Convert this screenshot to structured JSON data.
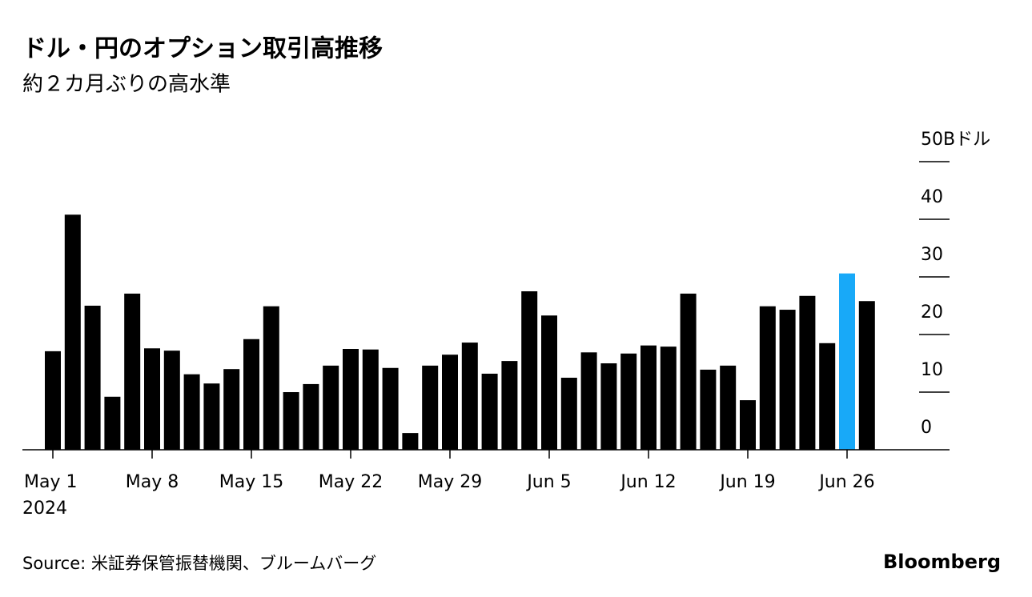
{
  "chart_data": {
    "type": "bar",
    "title": "ドル・円のオプション取引高推移",
    "subtitle": "約２カ月ぶりの高水準",
    "categories": [
      "May 1",
      null,
      null,
      null,
      null,
      "May 8",
      null,
      null,
      null,
      null,
      "May 15",
      null,
      null,
      null,
      null,
      "May 22",
      null,
      null,
      null,
      null,
      "May 29",
      null,
      null,
      null,
      null,
      "Jun 5",
      null,
      null,
      null,
      null,
      "Jun 12",
      null,
      null,
      null,
      null,
      "Jun 19",
      null,
      null,
      null,
      null,
      "Jun 26",
      null
    ],
    "x_sublabel": "2024",
    "values": [
      17.1,
      40.8,
      25.0,
      9.2,
      27.1,
      17.6,
      17.2,
      13.1,
      11.5,
      14.0,
      19.2,
      24.9,
      10.0,
      11.4,
      14.6,
      17.5,
      17.4,
      14.2,
      2.9,
      14.6,
      16.5,
      18.6,
      13.2,
      15.4,
      27.5,
      23.3,
      12.5,
      16.9,
      15.0,
      16.7,
      18.1,
      17.9,
      27.1,
      13.9,
      14.6,
      8.6,
      24.9,
      24.3,
      26.7,
      18.5,
      30.6,
      25.8
    ],
    "colors": [
      "#000000",
      "#000000",
      "#000000",
      "#000000",
      "#000000",
      "#000000",
      "#000000",
      "#000000",
      "#000000",
      "#000000",
      "#000000",
      "#000000",
      "#000000",
      "#000000",
      "#000000",
      "#000000",
      "#000000",
      "#000000",
      "#000000",
      "#000000",
      "#000000",
      "#000000",
      "#000000",
      "#000000",
      "#000000",
      "#000000",
      "#000000",
      "#000000",
      "#000000",
      "#000000",
      "#000000",
      "#000000",
      "#000000",
      "#000000",
      "#000000",
      "#000000",
      "#000000",
      "#000000",
      "#000000",
      "#000000",
      "#18a9f8",
      "#000000"
    ],
    "ylim": [
      0,
      50
    ],
    "yticks": [
      0,
      10,
      20,
      30,
      40,
      {
        "value": 50,
        "label": "50Bドル"
      }
    ],
    "source": "Source: 米証券保管振替機関、ブルームバーグ",
    "brand": "Bloomberg"
  }
}
